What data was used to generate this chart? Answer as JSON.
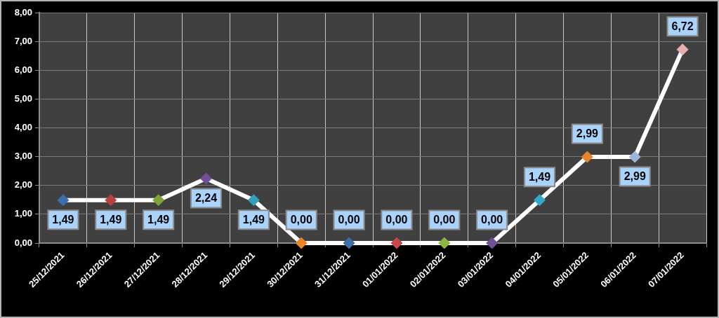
{
  "chart_data": {
    "type": "line",
    "categories": [
      "25/12/2021",
      "26/12/2021",
      "27/12/2021",
      "28/12/2021",
      "29/12/2021",
      "30/12/2021",
      "31/12/2021",
      "01/01/2022",
      "02/01/2022",
      "03/01/2022",
      "04/01/2022",
      "05/01/2022",
      "06/01/2022",
      "07/01/2022"
    ],
    "series": [
      {
        "color": "#ffffff",
        "colors": [
          "#3d6fad",
          "#b84040",
          "#7fa23a",
          "#6f4f96",
          "#33a0bd",
          "#e8842a",
          "#3d6fad",
          "#c84848",
          "#8db63f",
          "#6f4f96",
          "#33a8c8",
          "#e8842a",
          "#9fb4d8",
          "#e6b0b0"
        ],
        "values": [
          1.49,
          1.49,
          1.49,
          2.24,
          1.49,
          0,
          0,
          0,
          0,
          0,
          1.49,
          2.99,
          2.99,
          6.72
        ],
        "value_labels": [
          "1,49",
          "1,49",
          "1,49",
          "2,24",
          "1,49",
          "0,00",
          "0,00",
          "0,00",
          "0,00",
          "0,00",
          "1,49",
          "2,99",
          "2,99",
          "6,72"
        ]
      }
    ],
    "ylim": [
      0,
      8
    ],
    "yticks": [
      {
        "value": 0,
        "label": "0,00"
      },
      {
        "value": 1,
        "label": "1,00"
      },
      {
        "value": 2,
        "label": "2,00"
      },
      {
        "value": 3,
        "label": "3,00"
      },
      {
        "value": 4,
        "label": "4,00"
      },
      {
        "value": 5,
        "label": "5,00"
      },
      {
        "value": 6,
        "label": "6,00"
      },
      {
        "value": 7,
        "label": "7,00"
      },
      {
        "value": 8,
        "label": "8,00"
      }
    ],
    "grid": true,
    "marker": "diamond",
    "line_style": "solid"
  }
}
